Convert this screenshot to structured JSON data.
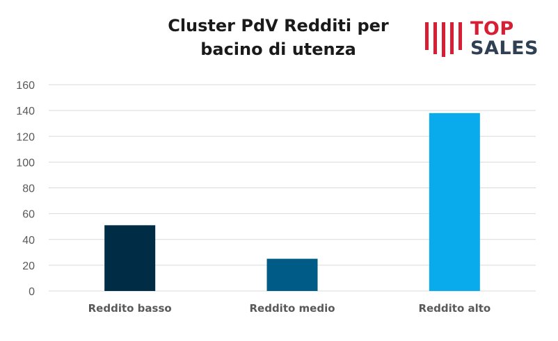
{
  "logo": {
    "line1": "TOP",
    "line2": "SALES",
    "accent_color": "#d61f34",
    "text_color": "#2f4053"
  },
  "chart_data": {
    "type": "bar",
    "title_lines": [
      "Cluster PdV Redditi per",
      "bacino di utenza"
    ],
    "categories": [
      "Reddito basso",
      "Reddito medio",
      "Reddito alto"
    ],
    "values": [
      51,
      25,
      138
    ],
    "colors": [
      "#002d45",
      "#005c87",
      "#0aabed"
    ],
    "ylim": [
      0,
      160
    ],
    "yticks": [
      0,
      20,
      40,
      60,
      80,
      100,
      120,
      140,
      160
    ],
    "grid": true,
    "legend": "none"
  }
}
